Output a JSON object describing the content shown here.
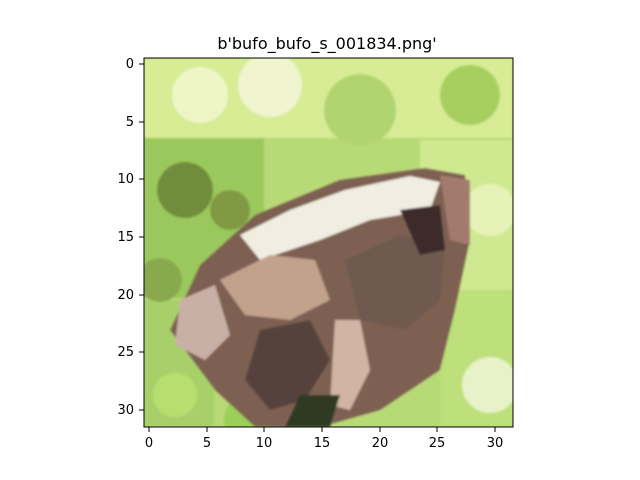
{
  "figure": {
    "title": "b'bufo_bufo_s_001834.png'"
  },
  "image": {
    "description_tag": "toad-photo-pixelated",
    "resolution": [
      32,
      32
    ],
    "palette": {
      "light_green": "#d9ee96",
      "grass_green": "#9fca5c",
      "dark_green": "#5f7a34",
      "toad_pink": "#c8a694",
      "toad_brown": "#7b6051",
      "toad_dark": "#3a2a2a",
      "highlight": "#f3f2df"
    }
  },
  "axes": {
    "x_ticks": [
      "0",
      "5",
      "10",
      "15",
      "20",
      "25",
      "30"
    ],
    "y_ticks": [
      "0",
      "5",
      "10",
      "15",
      "20",
      "25",
      "30"
    ]
  }
}
